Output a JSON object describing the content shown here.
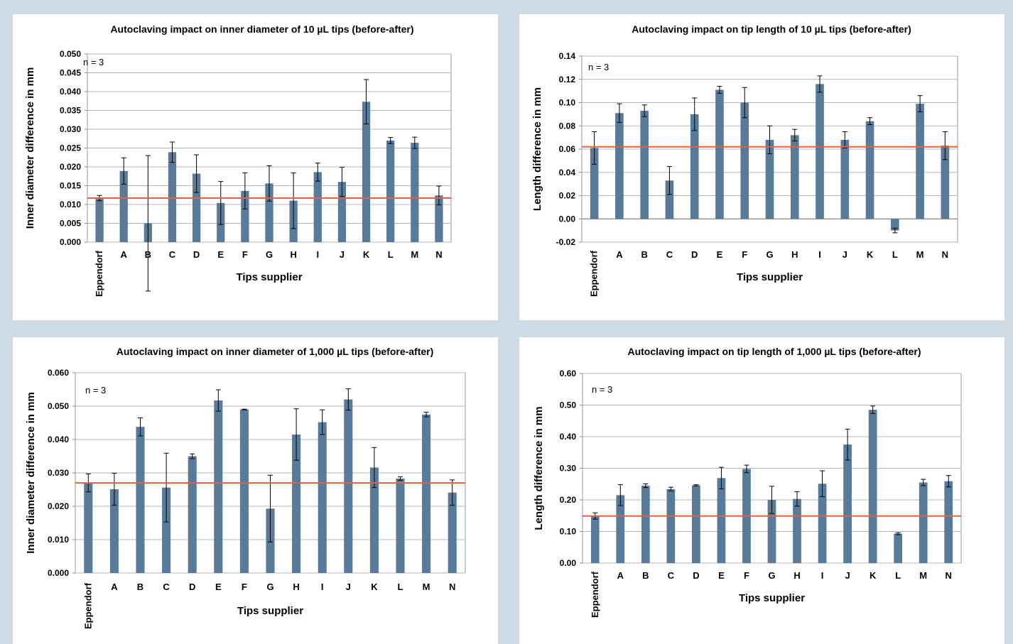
{
  "colors": {
    "bar": "#587a9b",
    "reference_line": "#e8603c",
    "grid": "#b5b5b5",
    "background": "#cfdbe4"
  },
  "chart_data": [
    {
      "type": "bar",
      "title": "Autoclaving impact on inner diameter of 10 µL tips (before-after)",
      "xlabel": "Tips supplier",
      "ylabel": "Inner diameter difference in mm",
      "annotation": "n = 3",
      "categories": [
        "Eppendorf",
        "A",
        "B",
        "C",
        "D",
        "E",
        "F",
        "G",
        "H",
        "I",
        "J",
        "K",
        "L",
        "M",
        "N"
      ],
      "values": [
        0.0117,
        0.0189,
        0.005,
        0.0239,
        0.0182,
        0.0104,
        0.0136,
        0.0156,
        0.011,
        0.0186,
        0.016,
        0.0373,
        0.027,
        0.0264,
        0.0124
      ],
      "errors": [
        0.0007,
        0.0035,
        0.018,
        0.0027,
        0.005,
        0.0057,
        0.0048,
        0.0047,
        0.0074,
        0.0024,
        0.0039,
        0.0059,
        0.0008,
        0.0015,
        0.0025
      ],
      "reference_line": 0.0117,
      "ylim": [
        0,
        0.05
      ],
      "yticks": [
        "0.000",
        "0.005",
        "0.010",
        "0.015",
        "0.020",
        "0.025",
        "0.030",
        "0.035",
        "0.040",
        "0.045",
        "0.050"
      ],
      "grid": true
    },
    {
      "type": "bar",
      "title": "Autoclaving impact on tip length of 10 µL tips (before-after)",
      "xlabel": "Tips supplier",
      "ylabel": "Length difference in mm",
      "annotation": "n = 3",
      "categories": [
        "Eppendorf",
        "A",
        "B",
        "C",
        "D",
        "E",
        "F",
        "G",
        "H",
        "I",
        "J",
        "K",
        "L",
        "M",
        "N"
      ],
      "values": [
        0.061,
        0.091,
        0.093,
        0.033,
        0.09,
        0.111,
        0.1,
        0.068,
        0.072,
        0.116,
        0.068,
        0.084,
        -0.01,
        0.099,
        0.063
      ],
      "errors": [
        0.014,
        0.008,
        0.005,
        0.012,
        0.014,
        0.003,
        0.013,
        0.012,
        0.005,
        0.007,
        0.007,
        0.003,
        0.002,
        0.007,
        0.012
      ],
      "reference_line": 0.062,
      "ylim": [
        -0.02,
        0.14
      ],
      "yticks": [
        "-0.02",
        "0.00",
        "0.02",
        "0.04",
        "0.06",
        "0.08",
        "0.10",
        "0.12",
        "0.14"
      ],
      "grid": true
    },
    {
      "type": "bar",
      "title": "Autoclaving impact on inner diameter of 1,000 µL tips (before-after)",
      "xlabel": "Tips supplier",
      "ylabel": "Inner diameter difference in mm",
      "annotation": "n = 3",
      "categories": [
        "Eppendorf",
        "A",
        "B",
        "C",
        "D",
        "E",
        "F",
        "G",
        "H",
        "I",
        "J",
        "K",
        "L",
        "M",
        "N"
      ],
      "values": [
        0.027,
        0.0251,
        0.0438,
        0.0256,
        0.035,
        0.0517,
        0.049,
        0.0193,
        0.0415,
        0.0452,
        0.052,
        0.0316,
        0.0283,
        0.0475,
        0.0241
      ],
      "errors": [
        0.0027,
        0.0048,
        0.0027,
        0.0103,
        0.0007,
        0.0032,
        0.0001,
        0.01,
        0.0077,
        0.0037,
        0.0032,
        0.006,
        0.0005,
        0.0007,
        0.0038
      ],
      "reference_line": 0.027,
      "ylim": [
        0,
        0.06
      ],
      "yticks": [
        "0.000",
        "0.010",
        "0.020",
        "0.030",
        "0.040",
        "0.050",
        "0.060"
      ],
      "grid": true
    },
    {
      "type": "bar",
      "title": "Autoclaving impact on tip length of 1,000 µL tips (before-after)",
      "xlabel": "Tips supplier",
      "ylabel": "Length difference in mm",
      "annotation": "n = 3",
      "categories": [
        "Eppendorf",
        "A",
        "B",
        "C",
        "D",
        "E",
        "F",
        "G",
        "H",
        "I",
        "J",
        "K",
        "L",
        "M",
        "N"
      ],
      "values": [
        0.149,
        0.215,
        0.245,
        0.234,
        0.246,
        0.269,
        0.298,
        0.2,
        0.203,
        0.251,
        0.375,
        0.485,
        0.093,
        0.255,
        0.259
      ],
      "errors": [
        0.01,
        0.033,
        0.006,
        0.006,
        0.002,
        0.034,
        0.012,
        0.043,
        0.023,
        0.041,
        0.049,
        0.012,
        0.003,
        0.01,
        0.018
      ],
      "reference_line": 0.149,
      "ylim": [
        0,
        0.6
      ],
      "yticks": [
        "0.00",
        "0.10",
        "0.20",
        "0.30",
        "0.40",
        "0.50",
        "0.60"
      ],
      "grid": true
    }
  ]
}
